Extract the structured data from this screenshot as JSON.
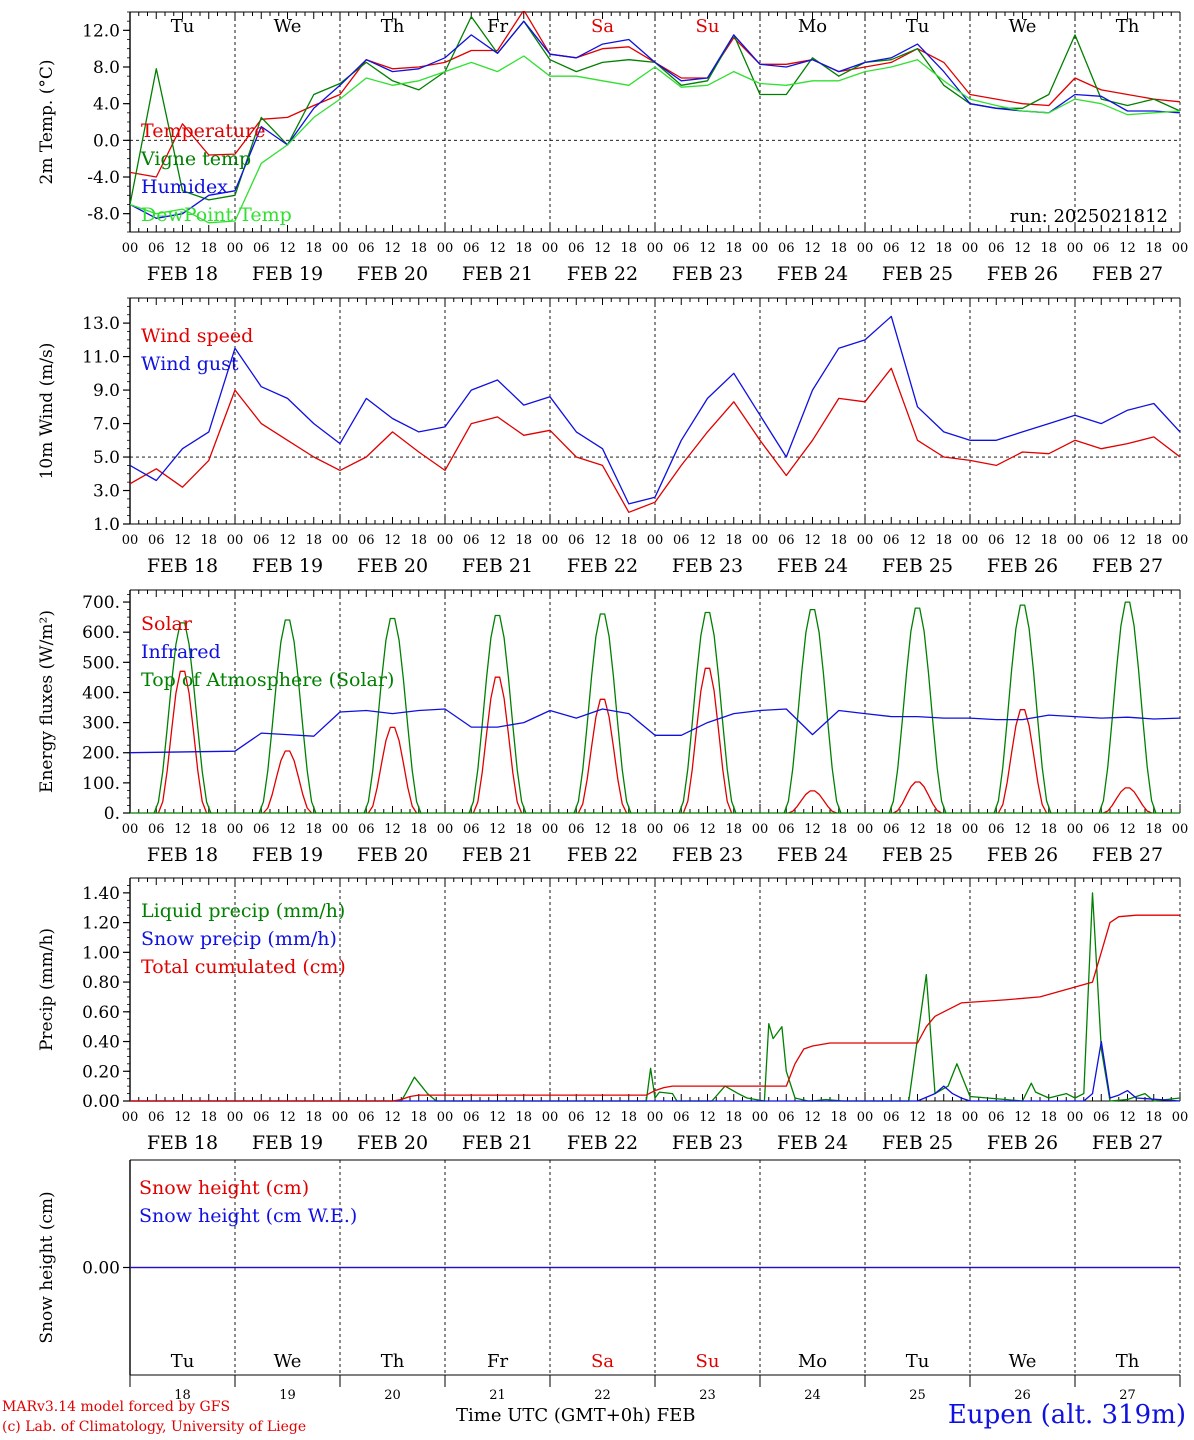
{
  "colors": {
    "red": "#e00000",
    "dark_green": "#008000",
    "blue": "#1010e0",
    "light_green": "#30e030",
    "axis": "#000000"
  },
  "credits": {
    "line1": "MARv3.14 model forced by GFS",
    "line2": "(c) Lab. of Climatology, University of Liege"
  },
  "location_label": "Eupen (alt. 319m)",
  "x_axis_title": "Time UTC (GMT+0h) FEB",
  "chart_data": [
    {
      "type": "line",
      "id": "temp",
      "ylabel": "2m Temp. (°C)",
      "ylim": [
        -10,
        14
      ],
      "yticks": [
        "12.0",
        "8.0",
        "4.0",
        "0.0",
        "-4.0",
        "-8.0"
      ],
      "ytick_values": [
        12,
        8,
        4,
        0,
        -4,
        -8
      ],
      "dashed_y": 0,
      "annotation": "run: 2025021812",
      "weekdays": [
        "Tu",
        "We",
        "Th",
        "Fr",
        "Sa",
        "Su",
        "Mo",
        "Tu",
        "We",
        "Th"
      ],
      "weekday_colors": [
        "black",
        "black",
        "black",
        "black",
        "red",
        "red",
        "black",
        "black",
        "black",
        "black"
      ],
      "x_hours": [
        0,
        6,
        12,
        18,
        24,
        30,
        36,
        42,
        48,
        54,
        60,
        66,
        72,
        78,
        84,
        90,
        96,
        102,
        108,
        114,
        120,
        126,
        132,
        138,
        144,
        150,
        156,
        162,
        168,
        174,
        180,
        186,
        192,
        198,
        204,
        210,
        216,
        222,
        228,
        234,
        240
      ],
      "series": [
        {
          "name": "Temperature",
          "color": "red",
          "values": [
            -3.5,
            -4.0,
            1.8,
            -1.6,
            -1.5,
            2.3,
            2.5,
            3.8,
            5.0,
            8.8,
            7.8,
            8.0,
            8.5,
            9.8,
            9.8,
            14.2,
            9.4,
            9.0,
            10.0,
            10.2,
            8.5,
            6.8,
            6.8,
            11.2,
            8.3,
            8.3,
            8.8,
            7.5,
            8.0,
            8.5,
            10.0,
            8.5,
            5.0,
            4.5,
            4.0,
            3.8,
            6.8,
            5.5,
            5.0,
            4.5,
            4.2
          ]
        },
        {
          "name": "Vigne temp",
          "color": "dark_green",
          "values": [
            -7.0,
            7.8,
            -5.5,
            -6.5,
            -6.0,
            2.5,
            -0.5,
            5.0,
            6.2,
            8.5,
            6.5,
            5.5,
            7.5,
            13.5,
            9.5,
            13.0,
            8.8,
            7.5,
            8.5,
            8.8,
            8.5,
            6.0,
            6.5,
            11.5,
            5.0,
            5.0,
            9.0,
            7.0,
            8.5,
            8.8,
            10.0,
            6.0,
            4.0,
            3.5,
            3.5,
            5.0,
            11.5,
            4.5,
            3.8,
            4.5,
            3.2
          ]
        },
        {
          "name": "Humidex",
          "color": "blue",
          "values": [
            -7.0,
            -8.5,
            -8.0,
            -6.0,
            -5.5,
            1.5,
            -0.5,
            3.5,
            6.0,
            8.8,
            7.5,
            7.8,
            9.0,
            11.5,
            9.5,
            13.0,
            9.4,
            9.0,
            10.5,
            11.0,
            8.5,
            6.5,
            6.8,
            11.5,
            8.3,
            8.0,
            8.8,
            7.5,
            8.5,
            9.0,
            10.5,
            7.5,
            4.0,
            3.5,
            3.2,
            3.0,
            5.0,
            4.8,
            3.2,
            3.2,
            3.0
          ]
        },
        {
          "name": "DewPoint Temp",
          "color": "light_green",
          "values": [
            -7.0,
            -8.0,
            -7.5,
            -9.0,
            -8.8,
            -2.5,
            -0.5,
            2.5,
            4.5,
            6.8,
            6.0,
            6.5,
            7.5,
            8.5,
            7.5,
            9.2,
            7.0,
            7.0,
            6.5,
            6.0,
            8.0,
            5.8,
            6.0,
            7.5,
            6.2,
            6.0,
            6.5,
            6.5,
            7.5,
            8.0,
            8.8,
            6.5,
            4.5,
            3.8,
            3.2,
            3.0,
            4.5,
            4.0,
            2.8,
            3.0,
            3.2
          ]
        }
      ]
    },
    {
      "type": "line",
      "id": "wind",
      "ylabel": "10m Wind (m/s)",
      "ylim": [
        1,
        14.5
      ],
      "yticks": [
        "13.0",
        "11.0",
        "9.0",
        "7.0",
        "5.0",
        "3.0",
        "1.0"
      ],
      "ytick_values": [
        13,
        11,
        9,
        7,
        5,
        3,
        1
      ],
      "dashed_y": 5,
      "x_hours": [
        0,
        6,
        12,
        18,
        24,
        30,
        36,
        42,
        48,
        54,
        60,
        66,
        72,
        78,
        84,
        90,
        96,
        102,
        108,
        114,
        120,
        126,
        132,
        138,
        144,
        150,
        156,
        162,
        168,
        174,
        180,
        186,
        192,
        198,
        204,
        210,
        216,
        222,
        228,
        234,
        240
      ],
      "series": [
        {
          "name": "Wind speed",
          "color": "red",
          "values": [
            3.4,
            4.3,
            3.2,
            4.8,
            9.0,
            7.0,
            6.0,
            5.0,
            4.2,
            5.0,
            6.5,
            5.3,
            4.2,
            7.0,
            7.4,
            6.3,
            6.6,
            5.0,
            4.5,
            1.7,
            2.3,
            4.5,
            6.5,
            8.3,
            6.0,
            3.9,
            6.0,
            8.5,
            8.3,
            10.3,
            6.0,
            5.0,
            4.8,
            4.5,
            5.3,
            5.2,
            6.0,
            5.5,
            5.8,
            6.2,
            5.0
          ]
        },
        {
          "name": "Wind gust",
          "color": "blue",
          "values": [
            4.5,
            3.6,
            5.5,
            6.5,
            11.5,
            9.2,
            8.5,
            7.0,
            5.8,
            8.5,
            7.3,
            6.5,
            6.8,
            9.0,
            9.6,
            8.1,
            8.6,
            6.5,
            5.5,
            2.2,
            2.6,
            6.0,
            8.5,
            10.0,
            7.5,
            5.0,
            9.0,
            11.5,
            12.0,
            13.4,
            8.0,
            6.5,
            6.0,
            6.0,
            6.5,
            7.0,
            7.5,
            7.0,
            7.8,
            8.2,
            6.5
          ]
        }
      ]
    },
    {
      "type": "line",
      "id": "energy",
      "ylabel": "Energy fluxes (W/m²)",
      "ylim": [
        0,
        740
      ],
      "yticks": [
        "700.",
        "600.",
        "500.",
        "400.",
        "300.",
        "200.",
        "100.",
        "0."
      ],
      "ytick_values": [
        700,
        600,
        500,
        400,
        300,
        200,
        100,
        0
      ],
      "day_peaks": {
        "solar": [
          480,
          210,
          290,
          460,
          385,
          490,
          75,
          105,
          350,
          85
        ],
        "toa": [
          640,
          650,
          655,
          665,
          670,
          675,
          685,
          690,
          700,
          710
        ]
      },
      "series": [
        {
          "name": "Solar",
          "color": "red"
        },
        {
          "name": "Infrared",
          "color": "blue",
          "x_hours": [
            0,
            24,
            30,
            36,
            42,
            48,
            54,
            60,
            66,
            72,
            78,
            84,
            90,
            96,
            102,
            108,
            114,
            120,
            126,
            132,
            138,
            144,
            150,
            156,
            162,
            168,
            174,
            180,
            186,
            192,
            198,
            204,
            210,
            216,
            222,
            228,
            234,
            240
          ],
          "values": [
            200,
            205,
            265,
            260,
            255,
            335,
            340,
            330,
            340,
            345,
            285,
            285,
            300,
            340,
            315,
            345,
            330,
            258,
            258,
            300,
            330,
            340,
            345,
            260,
            340,
            330,
            320,
            320,
            315,
            315,
            310,
            310,
            325,
            320,
            315,
            318,
            312,
            315
          ]
        },
        {
          "name": "Top of Atmosphere (Solar)",
          "color": "dark_green"
        }
      ]
    },
    {
      "type": "line",
      "id": "precip",
      "ylabel": "Precip (mm/h)",
      "ylim": [
        0,
        1.5
      ],
      "yticks": [
        "1.40",
        "1.20",
        "1.00",
        "0.80",
        "0.60",
        "0.40",
        "0.20",
        "0.00"
      ],
      "ytick_values": [
        1.4,
        1.2,
        1.0,
        0.8,
        0.6,
        0.4,
        0.2,
        0
      ],
      "series": [
        {
          "name": "Liquid precip (mm/h)",
          "color": "dark_green",
          "x_hours": [
            0,
            60,
            62,
            63,
            65,
            68,
            70,
            118,
            119,
            120,
            121,
            124,
            125,
            126,
            128,
            130,
            133,
            136,
            139,
            141,
            145,
            146,
            147,
            149,
            150,
            152,
            155,
            156,
            159,
            163,
            166,
            172,
            178,
            182,
            184,
            187,
            189,
            192,
            204,
            206,
            207,
            210,
            214,
            216,
            218,
            220,
            222,
            224,
            228,
            232,
            234,
            240
          ],
          "values": [
            0,
            0,
            0,
            0.05,
            0.16,
            0.05,
            0,
            0,
            0.22,
            0.02,
            0.06,
            0.05,
            0,
            0,
            0,
            0,
            0,
            0.1,
            0.05,
            0.02,
            0,
            0.52,
            0.42,
            0.5,
            0.2,
            0.02,
            0,
            0,
            0.01,
            0,
            0,
            0,
            0,
            0.85,
            0.05,
            0.1,
            0.25,
            0.03,
            0,
            0.12,
            0.06,
            0.02,
            0.05,
            0.02,
            0.05,
            1.4,
            0.35,
            0,
            0.01,
            0.05,
            0,
            0.02
          ]
        },
        {
          "name": "Snow precip (mm/h)",
          "color": "blue",
          "x_hours": [
            0,
            180,
            184,
            186,
            188,
            190,
            192,
            216,
            218,
            220,
            222,
            224,
            226,
            228,
            230,
            240
          ],
          "values": [
            0,
            0,
            0.05,
            0.1,
            0.05,
            0.02,
            0,
            0,
            0,
            0.05,
            0.4,
            0.02,
            0.04,
            0.07,
            0.02,
            0
          ]
        },
        {
          "name": "Total cumulated (cm)",
          "color": "red",
          "x_hours": [
            0,
            60,
            62,
            64,
            66,
            118,
            120,
            122,
            124,
            150,
            152,
            154,
            156,
            160,
            180,
            182,
            184,
            186,
            190,
            200,
            208,
            214,
            220,
            222,
            224,
            226,
            230,
            240
          ],
          "values": [
            0,
            0,
            0.01,
            0.03,
            0.04,
            0.04,
            0.07,
            0.09,
            0.1,
            0.1,
            0.25,
            0.35,
            0.37,
            0.39,
            0.39,
            0.5,
            0.57,
            0.6,
            0.66,
            0.68,
            0.7,
            0.75,
            0.8,
            1.0,
            1.2,
            1.24,
            1.25,
            1.25
          ]
        }
      ]
    },
    {
      "type": "line",
      "id": "snow",
      "ylabel": "Snow height (cm)",
      "ylim": [
        -1,
        1
      ],
      "yticks": [
        "0.00"
      ],
      "ytick_values": [
        0
      ],
      "weekdays": [
        "Tu",
        "We",
        "Th",
        "Fr",
        "Sa",
        "Su",
        "Mo",
        "Tu",
        "We",
        "Th"
      ],
      "weekday_colors": [
        "black",
        "black",
        "black",
        "black",
        "red",
        "red",
        "black",
        "black",
        "black",
        "black"
      ],
      "day_numbers": [
        "18",
        "19",
        "20",
        "21",
        "22",
        "23",
        "24",
        "25",
        "26",
        "27"
      ],
      "series": [
        {
          "name": "Snow height (cm)",
          "color": "red",
          "x_hours": [
            0,
            240
          ],
          "values": [
            0,
            0
          ]
        },
        {
          "name": "Snow height (cm W.E.)",
          "color": "blue",
          "x_hours": [
            0,
            240
          ],
          "values": [
            0,
            0
          ]
        }
      ]
    }
  ],
  "x_axis": {
    "hour_labels": [
      "00",
      "06",
      "12",
      "18"
    ],
    "final_hour_label": "00",
    "date_labels": [
      "FEB 18",
      "FEB 19",
      "FEB 20",
      "FEB 21",
      "FEB 22",
      "FEB 23",
      "FEB 24",
      "FEB 25",
      "FEB 26",
      "FEB 27"
    ],
    "days": 10
  }
}
